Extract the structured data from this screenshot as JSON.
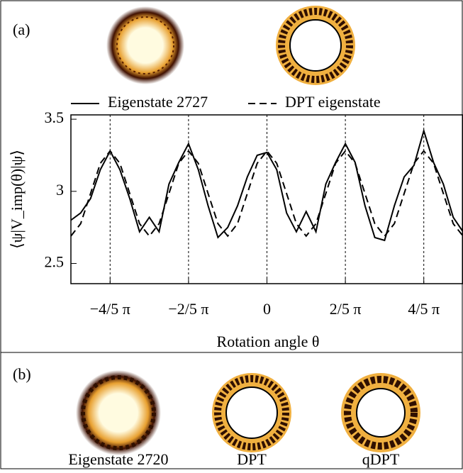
{
  "chart_data": {
    "type": "line",
    "panel_labels": [
      "(a)",
      "(b)"
    ],
    "xlabel": "Rotation angle θ",
    "ylabel": "⟨ψ|V_imp(θ)|ψ⟩",
    "xlim": [
      -3.1416,
      3.1416
    ],
    "ylim": [
      2.36,
      3.53
    ],
    "xticks": [
      {
        "value": -2.5133,
        "label": "−4/5 π"
      },
      {
        "value": -1.2566,
        "label": "−2/5 π"
      },
      0,
      {
        "value": 1.2566,
        "label": "2/5 π"
      },
      {
        "value": 2.5133,
        "label": "4/5 π"
      }
    ],
    "yticks": [
      2.5,
      3,
      3.5
    ],
    "grid": "x",
    "x": [
      -3.1416,
      -2.9845,
      -2.8274,
      -2.6704,
      -2.5133,
      -2.3562,
      -2.1991,
      -2.042,
      -1.885,
      -1.7279,
      -1.5708,
      -1.4137,
      -1.2566,
      -1.0996,
      -0.9425,
      -0.7854,
      -0.6283,
      -0.4712,
      -0.3142,
      -0.1571,
      0,
      0.1571,
      0.3142,
      0.4712,
      0.6283,
      0.7854,
      0.9425,
      1.0996,
      1.2566,
      1.4137,
      1.5708,
      1.7279,
      1.885,
      2.042,
      2.1991,
      2.3562,
      2.5133,
      2.6704,
      2.8274,
      2.9845,
      3.1416
    ],
    "series": [
      {
        "name": "Eigenstate 2727",
        "color": "#000000",
        "dash": false,
        "values": [
          2.8,
          2.85,
          2.95,
          3.15,
          3.28,
          3.15,
          2.95,
          2.72,
          2.82,
          2.72,
          3.05,
          3.2,
          3.33,
          3.15,
          2.9,
          2.68,
          2.75,
          2.9,
          3.1,
          3.25,
          3.27,
          3.15,
          2.85,
          2.72,
          2.86,
          2.72,
          3.05,
          3.2,
          3.33,
          3.2,
          2.9,
          2.68,
          2.66,
          2.9,
          3.1,
          3.18,
          3.42,
          3.2,
          3.05,
          2.82,
          2.72
        ]
      },
      {
        "name": "DPT eigenstate",
        "color": "#000000",
        "dash": true,
        "values": [
          2.69,
          2.776,
          2.985,
          3.194,
          3.28,
          3.194,
          2.985,
          2.776,
          2.69,
          2.776,
          2.985,
          3.194,
          3.28,
          3.194,
          2.985,
          2.776,
          2.69,
          2.776,
          2.985,
          3.194,
          3.28,
          3.194,
          2.985,
          2.776,
          2.69,
          2.776,
          2.985,
          3.194,
          3.28,
          3.194,
          2.985,
          2.776,
          2.69,
          2.776,
          2.985,
          3.194,
          3.28,
          3.194,
          2.985,
          2.776,
          2.69
        ]
      }
    ],
    "image_captions": [
      "Eigenstate 2720",
      "DPT",
      "qDPT"
    ]
  }
}
